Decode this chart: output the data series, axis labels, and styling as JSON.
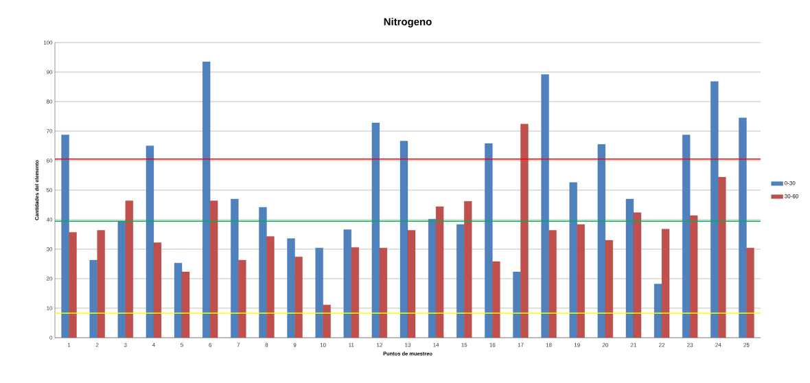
{
  "chart_data": {
    "type": "bar",
    "title": "Nitrogeno",
    "xlabel": "Puntos de muestreo",
    "ylabel": "Cantidades del elemento",
    "categories": [
      "1",
      "2",
      "3",
      "4",
      "5",
      "6",
      "7",
      "8",
      "9",
      "10",
      "11",
      "12",
      "13",
      "14",
      "15",
      "16",
      "17",
      "18",
      "19",
      "20",
      "21",
      "22",
      "23",
      "24",
      "25"
    ],
    "series": [
      {
        "name": "0-30",
        "color": "#4f81bd",
        "values": [
          68.7,
          26.3,
          39.5,
          65,
          25.3,
          93.5,
          47,
          44.2,
          33.6,
          30.4,
          36.6,
          72.8,
          66.6,
          40.2,
          38.4,
          65.8,
          22.3,
          89.2,
          52.6,
          65.5,
          47,
          18.2,
          68.7,
          86.8,
          74.5
        ]
      },
      {
        "name": "30-60",
        "color": "#c0504d",
        "values": [
          35.7,
          36.4,
          46.4,
          32.2,
          22.3,
          46.4,
          26.3,
          34.3,
          27.4,
          11.1,
          30.6,
          30.4,
          36.4,
          44.4,
          46.2,
          25.8,
          72.4,
          36.4,
          38.4,
          33,
          42.4,
          36.8,
          41.4,
          54.4,
          30.4
        ]
      }
    ],
    "ref_lines": [
      {
        "axis": "y",
        "value": 60.5,
        "color": "#ff0000"
      },
      {
        "axis": "y",
        "value": 39.5,
        "color": "#00b050"
      },
      {
        "axis": "y",
        "value": 8.3,
        "color": "#ffff00"
      }
    ],
    "ylim": [
      0,
      100
    ],
    "yticks": [
      0,
      10,
      20,
      30,
      40,
      50,
      60,
      70,
      80,
      90,
      100
    ],
    "grid": "y",
    "legend": "right"
  }
}
